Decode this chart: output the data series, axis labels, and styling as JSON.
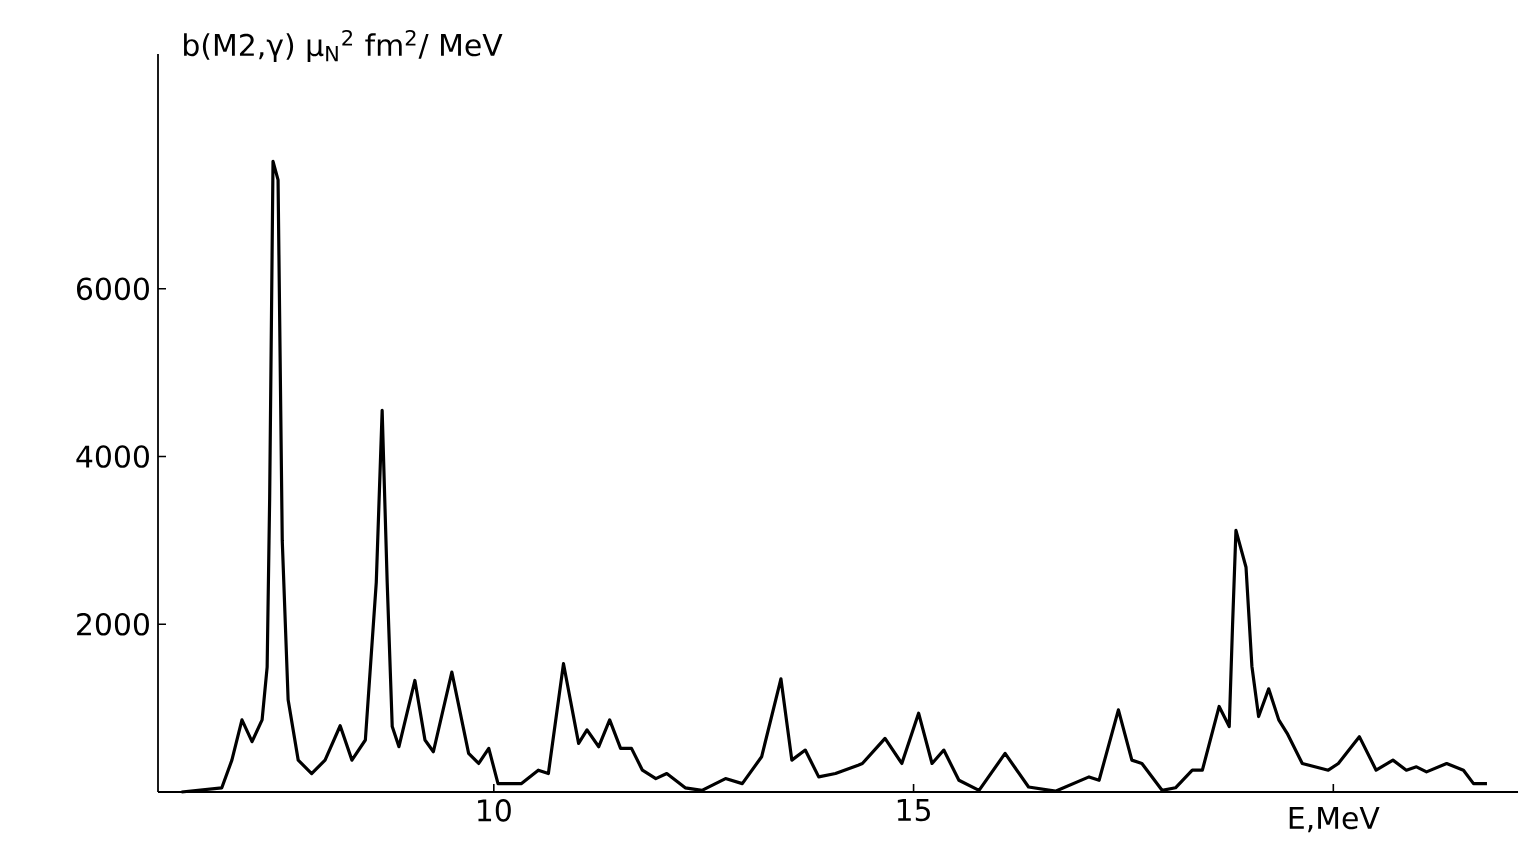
{
  "chart_data": {
    "type": "line",
    "ylabel": "b(M2,γ) μ$_{N}$$^{2}$ fm$^{2}$/ MeV",
    "xlabel": "E,MeV",
    "xlim": [
      6,
      22.2
    ],
    "ylim": [
      0,
      8800
    ],
    "xticks": [
      10,
      15,
      {
        "value": 20,
        "label": null
      }
    ],
    "yticks": [
      2000,
      4000,
      6000
    ],
    "marker": "none",
    "line_style": "solid",
    "series": [
      {
        "color": "#000000",
        "x": [
          6.28,
          6.76,
          6.88,
          7.0,
          7.12,
          7.24,
          7.3,
          7.33,
          7.37,
          7.43,
          7.48,
          7.55,
          7.67,
          7.83,
          7.99,
          8.17,
          8.31,
          8.47,
          8.6,
          8.67,
          8.73,
          8.79,
          8.87,
          9.06,
          9.18,
          9.28,
          9.5,
          9.7,
          9.82,
          9.94,
          10.05,
          10.33,
          10.53,
          10.65,
          10.83,
          11.01,
          11.11,
          11.25,
          11.38,
          11.51,
          11.64,
          11.77,
          11.93,
          12.06,
          12.28,
          12.48,
          12.76,
          12.96,
          13.19,
          13.42,
          13.55,
          13.71,
          13.87,
          14.07,
          14.34,
          14.39,
          14.66,
          14.86,
          15.06,
          15.22,
          15.36,
          15.54,
          15.78,
          16.09,
          16.37,
          16.69,
          17.09,
          17.21,
          17.44,
          17.6,
          17.72,
          17.96,
          18.12,
          18.32,
          18.44,
          18.64,
          18.76,
          18.8,
          18.84,
          18.96,
          19.03,
          19.11,
          19.23,
          19.35,
          19.45,
          19.63,
          19.94,
          20.06,
          20.31,
          20.51,
          20.71,
          20.87,
          20.99,
          21.11,
          21.35,
          21.55,
          21.67,
          21.83
        ],
        "values": [
          0,
          50,
          380,
          860,
          600,
          860,
          1490,
          3500,
          7520,
          7300,
          3000,
          1100,
          380,
          220,
          380,
          790,
          380,
          620,
          2500,
          4550,
          2500,
          780,
          540,
          1330,
          620,
          480,
          1430,
          460,
          340,
          520,
          100,
          100,
          260,
          220,
          1530,
          580,
          740,
          540,
          860,
          520,
          520,
          260,
          160,
          220,
          50,
          20,
          160,
          100,
          420,
          1350,
          380,
          500,
          180,
          220,
          320,
          340,
          640,
          340,
          940,
          340,
          500,
          140,
          20,
          460,
          60,
          10,
          180,
          140,
          980,
          380,
          340,
          20,
          50,
          260,
          260,
          1020,
          780,
          2000,
          3120,
          2680,
          1500,
          900,
          1230,
          860,
          700,
          340,
          260,
          340,
          660,
          260,
          380,
          260,
          300,
          240,
          340,
          260,
          100,
          100
        ]
      }
    ]
  }
}
